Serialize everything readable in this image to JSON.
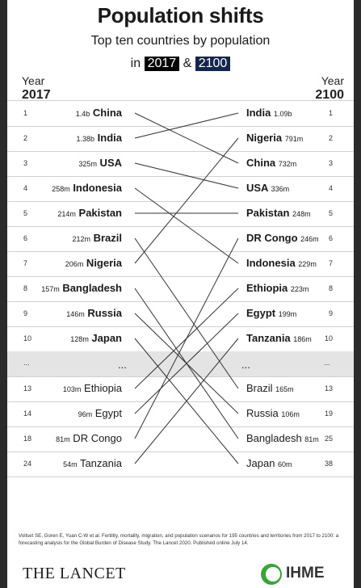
{
  "title": "Population shifts",
  "subtitle": "Top ten countries by population",
  "year_line": {
    "prefix": "in",
    "year1": "2017",
    "joiner": "&",
    "year2": "2100"
  },
  "left_header": {
    "label": "Year",
    "year": "2017"
  },
  "right_header": {
    "label": "Year",
    "year": "2100"
  },
  "ellipsis": "...",
  "chart_data": {
    "type": "bump",
    "title": "Population shifts",
    "subtitle": "Top ten countries by population",
    "periods": [
      "2017",
      "2100"
    ],
    "left": [
      {
        "rank": "1",
        "country": "China",
        "population": "1.4b"
      },
      {
        "rank": "2",
        "country": "India",
        "population": "1.38b"
      },
      {
        "rank": "3",
        "country": "USA",
        "population": "325m"
      },
      {
        "rank": "4",
        "country": "Indonesia",
        "population": "258m"
      },
      {
        "rank": "5",
        "country": "Pakistan",
        "population": "214m"
      },
      {
        "rank": "6",
        "country": "Brazil",
        "population": "212m"
      },
      {
        "rank": "7",
        "country": "Nigeria",
        "population": "206m"
      },
      {
        "rank": "8",
        "country": "Bangladesh",
        "population": "157m"
      },
      {
        "rank": "9",
        "country": "Russia",
        "population": "146m"
      },
      {
        "rank": "10",
        "country": "Japan",
        "population": "128m"
      },
      {
        "rank": "13",
        "country": "Ethiopia",
        "population": "103m"
      },
      {
        "rank": "14",
        "country": "Egypt",
        "population": "96m"
      },
      {
        "rank": "18",
        "country": "DR Congo",
        "population": "81m"
      },
      {
        "rank": "24",
        "country": "Tanzania",
        "population": "54m"
      }
    ],
    "right": [
      {
        "rank": "1",
        "country": "India",
        "population": "1.09b"
      },
      {
        "rank": "2",
        "country": "Nigeria",
        "population": "791m"
      },
      {
        "rank": "3",
        "country": "China",
        "population": "732m"
      },
      {
        "rank": "4",
        "country": "USA",
        "population": "336m"
      },
      {
        "rank": "5",
        "country": "Pakistan",
        "population": "248m"
      },
      {
        "rank": "6",
        "country": "DR Congo",
        "population": "246m"
      },
      {
        "rank": "7",
        "country": "Indonesia",
        "population": "229m"
      },
      {
        "rank": "8",
        "country": "Ethiopia",
        "population": "223m"
      },
      {
        "rank": "9",
        "country": "Egypt",
        "population": "199m"
      },
      {
        "rank": "10",
        "country": "Tanzania",
        "population": "186m"
      },
      {
        "rank": "13",
        "country": "Brazil",
        "population": "165m"
      },
      {
        "rank": "19",
        "country": "Russia",
        "population": "106m"
      },
      {
        "rank": "25",
        "country": "Bangladesh",
        "population": "81m"
      },
      {
        "rank": "38",
        "country": "Japan",
        "population": "60m"
      }
    ]
  },
  "footnote": "Vollset SE, Goren E, Yuan C-W et al. Fertility, mortality, migration, and population scenarios for 195 countries and territories from 2017 to 2100: a forecasting analysis for the Global Burden of Disease Study. The Lancet 2020. Published online July 14.",
  "logos": {
    "left": "THE LANCET",
    "right": "IHME"
  },
  "colors": {
    "background": "#ffffff",
    "text": "#1a1a1a",
    "line": "#333333",
    "badge_2017": "#000000",
    "badge_2100": "#15264d",
    "ihme_green": "#3aa33a"
  }
}
